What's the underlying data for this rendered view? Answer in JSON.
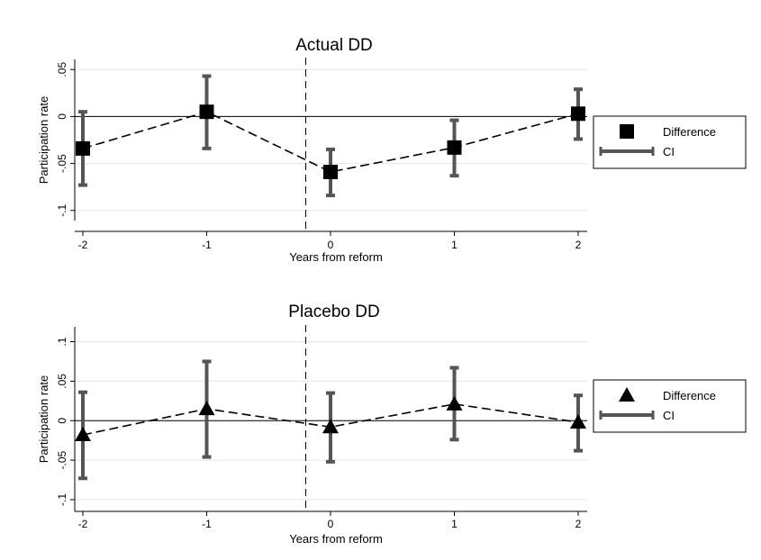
{
  "chart_data": [
    {
      "type": "line",
      "title": "Actual DD",
      "xlabel": "Years from reform",
      "ylabel": "Participation rate",
      "x": [
        -2,
        -1,
        0,
        1,
        2
      ],
      "x_ticks": [
        "-2",
        "-1",
        "0",
        "1",
        "2"
      ],
      "y_ticks": [
        {
          "value": -0.1,
          "label": "-.1"
        },
        {
          "value": -0.05,
          "label": "-.05"
        },
        {
          "value": 0,
          "label": "0"
        },
        {
          "value": 0.05,
          "label": ".05"
        }
      ],
      "xlim": [
        -2,
        2
      ],
      "ylim": [
        -0.105,
        0.055
      ],
      "reference_lines": {
        "vertical_x": -0.2,
        "horizontal_y": 0
      },
      "grid": true,
      "legend_position": "right",
      "marker": "square",
      "series": [
        {
          "name": "Difference",
          "values": [
            -0.034,
            0.005,
            -0.059,
            -0.033,
            0.003
          ]
        },
        {
          "name": "CI",
          "lower": [
            -0.073,
            -0.034,
            -0.084,
            -0.063,
            -0.024
          ],
          "upper": [
            0.005,
            0.043,
            -0.035,
            -0.004,
            0.029
          ]
        }
      ]
    },
    {
      "type": "line",
      "title": "Placebo DD",
      "xlabel": "Years from reform",
      "ylabel": "Participation rate",
      "x": [
        -2,
        -1,
        0,
        1,
        2
      ],
      "x_ticks": [
        "-2",
        "-1",
        "0",
        "1",
        "2"
      ],
      "y_ticks": [
        {
          "value": -0.1,
          "label": "-.1"
        },
        {
          "value": -0.05,
          "label": "-.05"
        },
        {
          "value": 0,
          "label": "0"
        },
        {
          "value": 0.05,
          "label": ".05"
        },
        {
          "value": 0.1,
          "label": ".1"
        }
      ],
      "xlim": [
        -2,
        2
      ],
      "ylim": [
        -0.108,
        0.112
      ],
      "reference_lines": {
        "vertical_x": -0.2,
        "horizontal_y": 0
      },
      "grid": true,
      "legend_position": "right",
      "marker": "triangle",
      "series": [
        {
          "name": "Difference",
          "values": [
            -0.018,
            0.015,
            -0.008,
            0.021,
            -0.002
          ]
        },
        {
          "name": "CI",
          "lower": [
            -0.073,
            -0.046,
            -0.052,
            -0.024,
            -0.038
          ],
          "upper": [
            0.036,
            0.075,
            0.035,
            0.067,
            0.032
          ]
        }
      ]
    }
  ]
}
